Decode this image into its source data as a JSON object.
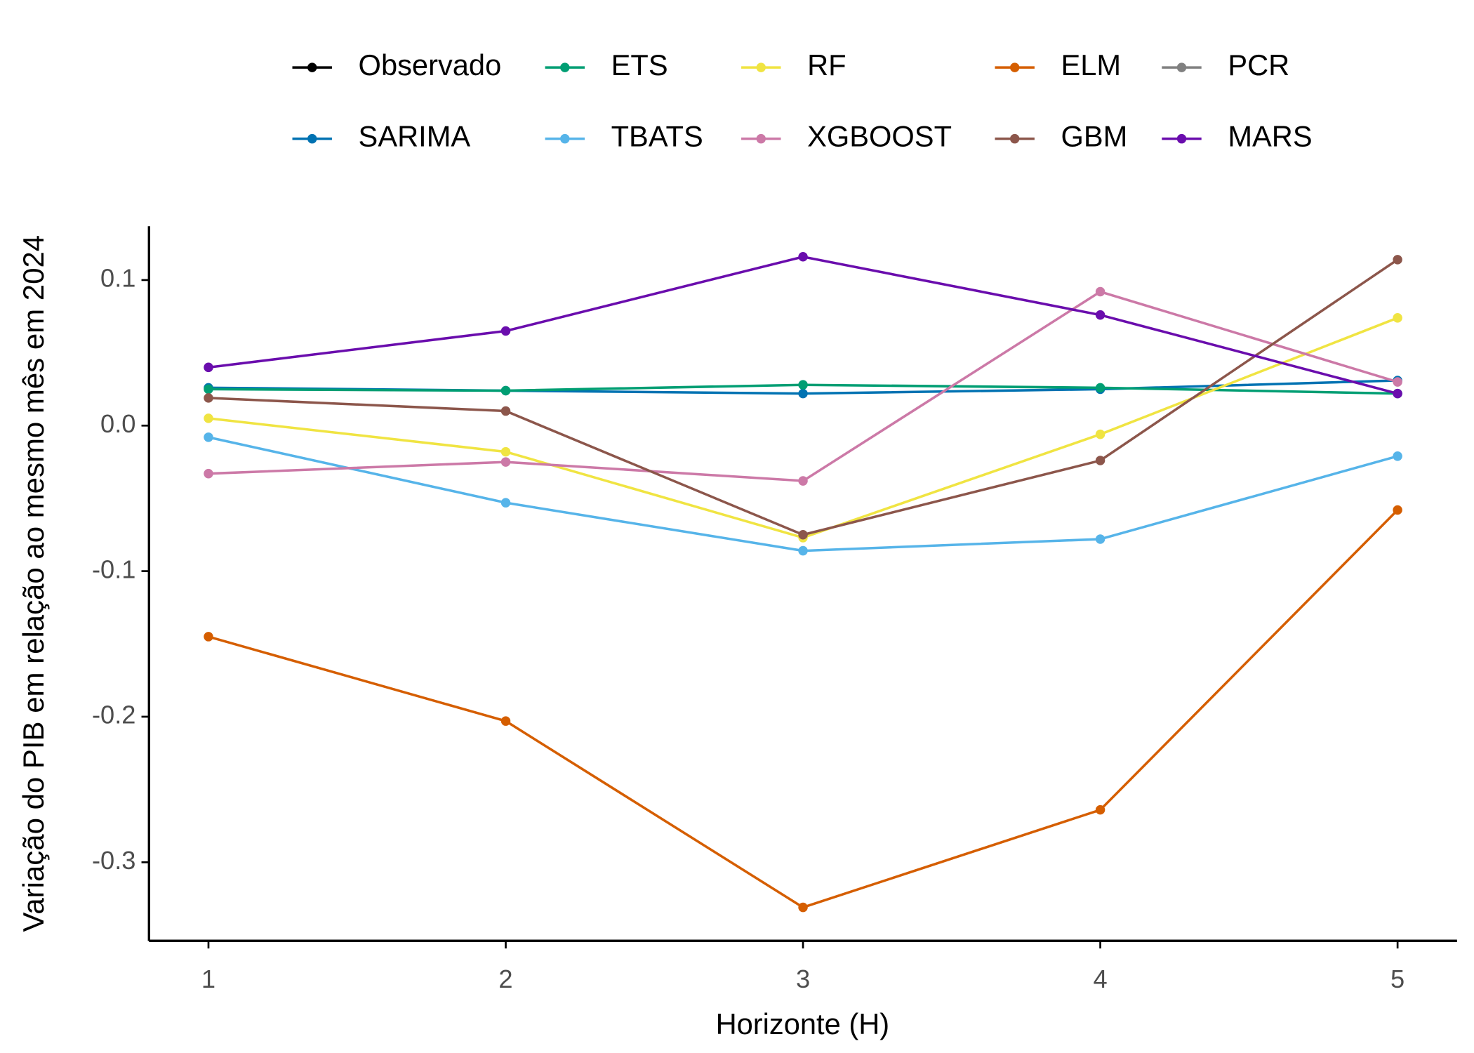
{
  "chart_data": {
    "type": "line",
    "x_label": "Horizonte (H)",
    "y_label": "Variação do PIB em relação ao mesmo mês em 2024",
    "x": [
      1,
      2,
      3,
      4,
      5
    ],
    "xlim": [
      0.8,
      5.2
    ],
    "xticks": [
      1,
      2,
      3,
      4,
      5
    ],
    "ylim": [
      -0.354,
      0.137
    ],
    "yticks": [
      -0.3,
      -0.2,
      -0.1,
      {
        "value": 0,
        "label": "0.0"
      },
      0.1
    ],
    "grid": false,
    "legend": "top",
    "series": [
      {
        "name": "Observado",
        "color": "#000000",
        "values": [
          null,
          null,
          null,
          null,
          null
        ]
      },
      {
        "name": "SARIMA",
        "color": "#0072B2",
        "values": [
          0.026,
          0.024,
          0.022,
          0.025,
          0.031
        ]
      },
      {
        "name": "ETS",
        "color": "#009E73",
        "values": [
          0.025,
          0.024,
          0.028,
          0.026,
          0.022
        ]
      },
      {
        "name": "TBATS",
        "color": "#56B4E9",
        "values": [
          -0.008,
          -0.053,
          -0.086,
          -0.078,
          -0.021
        ]
      },
      {
        "name": "RF",
        "color": "#F0E442",
        "values": [
          0.005,
          -0.018,
          -0.077,
          -0.006,
          0.074
        ]
      },
      {
        "name": "XGBOOST",
        "color": "#CC79A7",
        "values": [
          -0.033,
          -0.025,
          -0.038,
          0.092,
          0.03
        ]
      },
      {
        "name": "ELM",
        "color": "#D55E00",
        "values": [
          -0.145,
          -0.203,
          -0.331,
          -0.264,
          -0.058
        ]
      },
      {
        "name": "GBM",
        "color": "#8C564B",
        "values": [
          0.019,
          0.01,
          -0.075,
          -0.024,
          0.114
        ]
      },
      {
        "name": "PCR",
        "color": "#808080",
        "values": [
          null,
          null,
          null,
          null,
          null
        ]
      },
      {
        "name": "MARS",
        "color": "#6A0DAD",
        "values": [
          0.04,
          0.065,
          0.116,
          0.076,
          0.022
        ]
      }
    ]
  }
}
